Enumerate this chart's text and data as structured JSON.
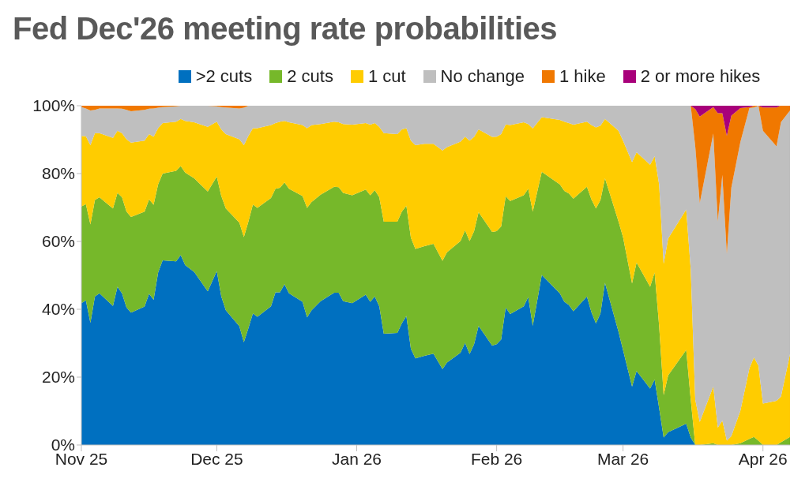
{
  "chart_data": {
    "type": "area",
    "title": "Fed Dec'26 meeting rate probabilities",
    "stacked": true,
    "legend": "top",
    "x": [
      "2025-11-01",
      "2025-11-02",
      "2025-11-03",
      "2025-11-04",
      "2025-11-05",
      "2025-11-08",
      "2025-11-09",
      "2025-11-10",
      "2025-11-11",
      "2025-11-12",
      "2025-11-15",
      "2025-11-16",
      "2025-11-17",
      "2025-11-18",
      "2025-11-19",
      "2025-11-22",
      "2025-11-23",
      "2025-11-24",
      "2025-11-26",
      "2025-11-29",
      "2025-12-01",
      "2025-12-02",
      "2025-12-03",
      "2025-12-06",
      "2025-12-07",
      "2025-12-08",
      "2025-12-09",
      "2025-12-10",
      "2025-12-13",
      "2025-12-14",
      "2025-12-15",
      "2025-12-16",
      "2025-12-17",
      "2025-12-20",
      "2025-12-21",
      "2025-12-22",
      "2025-12-24",
      "2025-12-27",
      "2025-12-28",
      "2025-12-29",
      "2025-12-31",
      "2026-01-03",
      "2026-01-04",
      "2026-01-05",
      "2026-01-06",
      "2026-01-07",
      "2026-01-10",
      "2026-01-11",
      "2026-01-12",
      "2026-01-13",
      "2026-01-14",
      "2026-01-16",
      "2026-01-18",
      "2026-01-20",
      "2026-01-21",
      "2026-01-24",
      "2026-01-25",
      "2026-01-26",
      "2026-01-27",
      "2026-01-28",
      "2026-01-31",
      "2026-02-01",
      "2026-02-02",
      "2026-02-03",
      "2026-02-04",
      "2026-02-07",
      "2026-02-08",
      "2026-02-09",
      "2026-02-11",
      "2026-02-15",
      "2026-02-16",
      "2026-02-17",
      "2026-02-18",
      "2026-02-21",
      "2026-02-22",
      "2026-02-23",
      "2026-02-24",
      "2026-02-25",
      "2026-02-28",
      "2026-03-01",
      "2026-03-03",
      "2026-03-04",
      "2026-03-07",
      "2026-03-08",
      "2026-03-09",
      "2026-03-10",
      "2026-03-11",
      "2026-03-15",
      "2026-03-16",
      "2026-03-17",
      "2026-03-18",
      "2026-03-21",
      "2026-03-22",
      "2026-03-23",
      "2026-03-24",
      "2026-03-25",
      "2026-03-27",
      "2026-03-29",
      "2026-03-30",
      "2026-03-31",
      "2026-04-01",
      "2026-04-04",
      "2026-04-05",
      "2026-04-07"
    ],
    "series": [
      {
        "name": ">2 cuts",
        "color": "#0070c0",
        "values": [
          41.8,
          42.6,
          36,
          43.8,
          44.7,
          41,
          46.6,
          44.7,
          40.5,
          39,
          40.8,
          44.6,
          42.8,
          50.8,
          54.4,
          54.1,
          56,
          53,
          51,
          45.3,
          51.3,
          43.8,
          39.7,
          35,
          30.3,
          34.4,
          38.8,
          37.8,
          40.9,
          45,
          45,
          47.4,
          44.7,
          42.2,
          37.6,
          39.7,
          42.4,
          44.9,
          44.9,
          42.4,
          41.8,
          44.3,
          42.2,
          43.8,
          40.9,
          32.8,
          33,
          35.9,
          38,
          28.4,
          25.5,
          26.3,
          26.9,
          22.4,
          24.3,
          27.2,
          30.1,
          26.8,
          29.7,
          35.1,
          29.3,
          29.7,
          31.1,
          40.5,
          38.6,
          40.9,
          43.6,
          35.1,
          50.1,
          44.7,
          42.2,
          41.3,
          39.4,
          43.8,
          39.1,
          35.8,
          38.8,
          47.8,
          33.4,
          28,
          17.2,
          21.8,
          16.6,
          19.3,
          10.9,
          2.2,
          3.8,
          6.3,
          2.2,
          0,
          0,
          0,
          0,
          0,
          0,
          0,
          0,
          0,
          0,
          0,
          0,
          0,
          0,
          0
        ]
      },
      {
        "name": "2 cuts",
        "color": "#76b82a",
        "values": [
          28.5,
          28.4,
          29,
          28.4,
          28.3,
          28.7,
          27.7,
          28.3,
          28.3,
          28.2,
          28,
          27.8,
          28,
          26,
          25.6,
          26.7,
          26.2,
          27.3,
          27.6,
          29.4,
          27.8,
          29.6,
          30,
          30.5,
          31,
          31.4,
          32.1,
          32.1,
          31.9,
          30.5,
          30.8,
          30,
          30.8,
          31.2,
          32.3,
          31.9,
          31.4,
          31.2,
          31.1,
          31.9,
          31.8,
          31,
          31.4,
          31.3,
          32.1,
          33,
          32.8,
          32.9,
          32.5,
          32.7,
          32.3,
          32.3,
          32.4,
          31.9,
          32.5,
          32.9,
          33.2,
          33.3,
          33.3,
          33.5,
          33.5,
          33.3,
          33.3,
          32.8,
          33.3,
          32.7,
          31.9,
          33.7,
          30.4,
          32.1,
          32.7,
          32.8,
          33.2,
          32.3,
          33.3,
          33.9,
          33.4,
          30.8,
          32.5,
          33.3,
          30.4,
          32,
          30,
          31.5,
          24.2,
          12.5,
          16.7,
          21.7,
          11.2,
          0,
          0,
          0.5,
          0,
          0,
          0,
          0,
          0.5,
          1.8,
          2.4,
          1.3,
          0,
          0,
          0.8,
          2.4
        ]
      },
      {
        "name": "1 cut",
        "color": "#ffcc00",
        "values": [
          20.8,
          20,
          23.4,
          19.7,
          18.9,
          20.8,
          18.3,
          18.9,
          21.3,
          21.9,
          20.9,
          19.2,
          20.1,
          16.6,
          14.9,
          14.5,
          13.9,
          15.2,
          16.5,
          19.1,
          16.2,
          19.6,
          21.9,
          24.6,
          27.1,
          25.3,
          22.5,
          23.5,
          21.5,
          19.4,
          19.5,
          18.1,
          19.6,
          20.9,
          23.5,
          22.7,
          20.8,
          19.2,
          19.1,
          20.3,
          20.8,
          19.6,
          20.8,
          19.8,
          20.8,
          26.1,
          25.8,
          24.2,
          22.9,
          28.6,
          30.6,
          30.2,
          29.5,
          32.5,
          31,
          29.3,
          27.6,
          29.6,
          27.8,
          24.4,
          28,
          27.9,
          27.2,
          21.2,
          22.4,
          21.5,
          19.1,
          24.5,
          16.1,
          19,
          20.4,
          20.8,
          21.8,
          19.2,
          21.9,
          23.9,
          21.9,
          17.5,
          26.7,
          28.4,
          35.8,
          32.5,
          36,
          34.3,
          41.7,
          38.7,
          40.4,
          41.4,
          38.4,
          13.4,
          6.8,
          16.7,
          5.1,
          7.2,
          1.3,
          2.6,
          9.6,
          20.8,
          23.4,
          22.1,
          12.2,
          13,
          13.5,
          24.4
        ]
      },
      {
        "name": "No change",
        "color": "#bfbfbf",
        "values": [
          8.5,
          8.2,
          10.2,
          6.9,
          7.3,
          8.7,
          6.6,
          7.2,
          8.7,
          9.3,
          9.1,
          7.5,
          8.3,
          6,
          4.7,
          4.5,
          3.9,
          4.5,
          4.9,
          6.2,
          4.5,
          6.6,
          7.9,
          9.1,
          11,
          8.9,
          6.6,
          6.6,
          5.7,
          5.1,
          4.7,
          4.5,
          4.9,
          5.7,
          6.6,
          5.7,
          5.4,
          4.7,
          4.9,
          5.4,
          5.6,
          5.1,
          5.6,
          5.1,
          6.2,
          8.1,
          8.4,
          7,
          6.6,
          10.3,
          11.6,
          11.2,
          11.2,
          13.2,
          12.2,
          10.6,
          9.1,
          10.3,
          9.2,
          7,
          9.2,
          9.1,
          8.4,
          5.6,
          5.7,
          4.9,
          5.4,
          6.7,
          3.4,
          4.2,
          4.7,
          5.1,
          5.6,
          4.7,
          5.7,
          6.4,
          5.9,
          3.9,
          7.4,
          10.3,
          16.6,
          13.7,
          17.4,
          14.9,
          23.2,
          46.6,
          39.1,
          30.6,
          48.2,
          74.6,
          64.5,
          74.6,
          60.8,
          72.4,
          55,
          73.3,
          79.2,
          76.7,
          73.7,
          76.6,
          80.4,
          75,
          80.9,
          71.8
        ]
      },
      {
        "name": "1 hike",
        "color": "#f07800",
        "values": [
          0.5,
          0.8,
          1.4,
          1.2,
          0.8,
          0.8,
          0.8,
          0.9,
          1.2,
          1.6,
          1.2,
          0.9,
          0.8,
          0.6,
          0.4,
          0.2,
          0,
          0,
          0,
          0,
          0.2,
          0.4,
          0.5,
          0.8,
          0.6,
          0,
          0,
          0,
          0,
          0,
          0,
          0,
          0,
          0,
          0,
          0,
          0,
          0,
          0,
          0,
          0,
          0,
          0,
          0,
          0,
          0,
          0,
          0,
          0,
          0,
          0,
          0,
          0,
          0,
          0,
          0,
          0,
          0,
          0,
          0,
          0,
          0,
          0,
          0,
          0,
          0,
          0,
          0,
          0,
          0,
          0,
          0,
          0,
          0,
          0,
          0,
          0,
          0,
          0,
          0,
          0,
          0,
          0,
          0,
          0,
          0,
          0,
          0,
          0,
          11,
          25.5,
          7.8,
          31.9,
          18.2,
          34.8,
          21.2,
          10,
          0.3,
          0.5,
          0,
          6.9,
          11.5,
          4.9,
          1.4
        ]
      },
      {
        "name": "2 or more hikes",
        "color": "#a8007a",
        "values": [
          0,
          0,
          0,
          0,
          0,
          0,
          0,
          0,
          0,
          0,
          0,
          0,
          0,
          0,
          0,
          0,
          0,
          0,
          0,
          0,
          0,
          0,
          0,
          0,
          0,
          0,
          0,
          0,
          0,
          0,
          0,
          0,
          0,
          0,
          0,
          0,
          0,
          0,
          0,
          0,
          0,
          0,
          0,
          0,
          0,
          0,
          0,
          0,
          0,
          0,
          0,
          0,
          0,
          0,
          0,
          0,
          0,
          0,
          0,
          0,
          0,
          0,
          0,
          0,
          0,
          0,
          0,
          0,
          0,
          0,
          0,
          0,
          0,
          0,
          0,
          0,
          0,
          0,
          0,
          0,
          0,
          0,
          0,
          0,
          0,
          0,
          0,
          0,
          0,
          1,
          3.2,
          0.4,
          2.2,
          2.2,
          8.9,
          2.9,
          0.7,
          0.4,
          0,
          0,
          0.5,
          0.5,
          0,
          0
        ]
      }
    ],
    "xlim": [
      "2025-11-01",
      "2026-04-07"
    ],
    "xticks": [
      {
        "value": "2025-11-01",
        "label": "Nov 25"
      },
      {
        "value": "2025-12-01",
        "label": "Dec 25"
      },
      {
        "value": "2026-01-01",
        "label": "Jan 26"
      },
      {
        "value": "2026-02-01",
        "label": "Feb 26"
      },
      {
        "value": "2026-03-01",
        "label": "Mar 26"
      },
      {
        "value": "2026-04-01",
        "label": "Apr 26"
      }
    ],
    "ylim": [
      0,
      100
    ],
    "yticks": [
      {
        "value": 0,
        "label": "0%"
      },
      {
        "value": 20,
        "label": "20%"
      },
      {
        "value": 40,
        "label": "40%"
      },
      {
        "value": 60,
        "label": "60%"
      },
      {
        "value": 80,
        "label": "80%"
      },
      {
        "value": 100,
        "label": "100%"
      }
    ]
  }
}
